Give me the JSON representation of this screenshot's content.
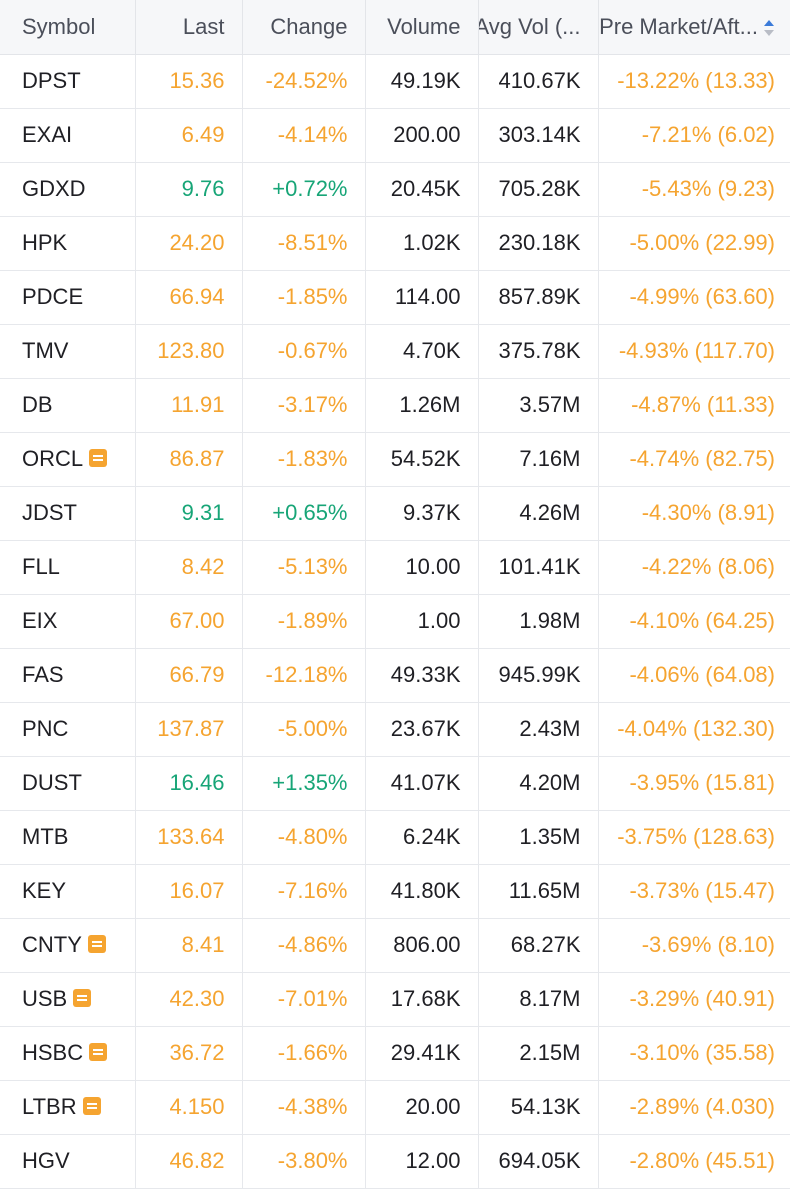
{
  "colors": {
    "negative": "#f5a430",
    "positive": "#17a577",
    "header_bg": "#f6f7f9",
    "sort_active": "#3b7bd9"
  },
  "headers": {
    "symbol": "Symbol",
    "last": "Last",
    "change": "Change",
    "volume": "Volume",
    "avg_volume": "Avg Vol (...",
    "pre_market": "Pre Market/Aft..."
  },
  "rows": [
    {
      "symbol": "DPST",
      "note": false,
      "last": "15.36",
      "change": "-24.52%",
      "volume": "49.19K",
      "avg_vol": "410.67K",
      "pre_market": "-13.22% (13.33)",
      "dir": "neg"
    },
    {
      "symbol": "EXAI",
      "note": false,
      "last": "6.49",
      "change": "-4.14%",
      "volume": "200.00",
      "avg_vol": "303.14K",
      "pre_market": "-7.21% (6.02)",
      "dir": "neg"
    },
    {
      "symbol": "GDXD",
      "note": false,
      "last": "9.76",
      "change": "+0.72%",
      "volume": "20.45K",
      "avg_vol": "705.28K",
      "pre_market": "-5.43% (9.23)",
      "dir": "pos"
    },
    {
      "symbol": "HPK",
      "note": false,
      "last": "24.20",
      "change": "-8.51%",
      "volume": "1.02K",
      "avg_vol": "230.18K",
      "pre_market": "-5.00% (22.99)",
      "dir": "neg"
    },
    {
      "symbol": "PDCE",
      "note": false,
      "last": "66.94",
      "change": "-1.85%",
      "volume": "114.00",
      "avg_vol": "857.89K",
      "pre_market": "-4.99% (63.60)",
      "dir": "neg"
    },
    {
      "symbol": "TMV",
      "note": false,
      "last": "123.80",
      "change": "-0.67%",
      "volume": "4.70K",
      "avg_vol": "375.78K",
      "pre_market": "-4.93% (117.70)",
      "dir": "neg"
    },
    {
      "symbol": "DB",
      "note": false,
      "last": "11.91",
      "change": "-3.17%",
      "volume": "1.26M",
      "avg_vol": "3.57M",
      "pre_market": "-4.87% (11.33)",
      "dir": "neg"
    },
    {
      "symbol": "ORCL",
      "note": true,
      "last": "86.87",
      "change": "-1.83%",
      "volume": "54.52K",
      "avg_vol": "7.16M",
      "pre_market": "-4.74% (82.75)",
      "dir": "neg"
    },
    {
      "symbol": "JDST",
      "note": false,
      "last": "9.31",
      "change": "+0.65%",
      "volume": "9.37K",
      "avg_vol": "4.26M",
      "pre_market": "-4.30% (8.91)",
      "dir": "pos"
    },
    {
      "symbol": "FLL",
      "note": false,
      "last": "8.42",
      "change": "-5.13%",
      "volume": "10.00",
      "avg_vol": "101.41K",
      "pre_market": "-4.22% (8.06)",
      "dir": "neg"
    },
    {
      "symbol": "EIX",
      "note": false,
      "last": "67.00",
      "change": "-1.89%",
      "volume": "1.00",
      "avg_vol": "1.98M",
      "pre_market": "-4.10% (64.25)",
      "dir": "neg"
    },
    {
      "symbol": "FAS",
      "note": false,
      "last": "66.79",
      "change": "-12.18%",
      "volume": "49.33K",
      "avg_vol": "945.99K",
      "pre_market": "-4.06% (64.08)",
      "dir": "neg"
    },
    {
      "symbol": "PNC",
      "note": false,
      "last": "137.87",
      "change": "-5.00%",
      "volume": "23.67K",
      "avg_vol": "2.43M",
      "pre_market": "-4.04% (132.30)",
      "dir": "neg"
    },
    {
      "symbol": "DUST",
      "note": false,
      "last": "16.46",
      "change": "+1.35%",
      "volume": "41.07K",
      "avg_vol": "4.20M",
      "pre_market": "-3.95% (15.81)",
      "dir": "pos"
    },
    {
      "symbol": "MTB",
      "note": false,
      "last": "133.64",
      "change": "-4.80%",
      "volume": "6.24K",
      "avg_vol": "1.35M",
      "pre_market": "-3.75% (128.63)",
      "dir": "neg"
    },
    {
      "symbol": "KEY",
      "note": false,
      "last": "16.07",
      "change": "-7.16%",
      "volume": "41.80K",
      "avg_vol": "11.65M",
      "pre_market": "-3.73% (15.47)",
      "dir": "neg"
    },
    {
      "symbol": "CNTY",
      "note": true,
      "last": "8.41",
      "change": "-4.86%",
      "volume": "806.00",
      "avg_vol": "68.27K",
      "pre_market": "-3.69% (8.10)",
      "dir": "neg"
    },
    {
      "symbol": "USB",
      "note": true,
      "last": "42.30",
      "change": "-7.01%",
      "volume": "17.68K",
      "avg_vol": "8.17M",
      "pre_market": "-3.29% (40.91)",
      "dir": "neg"
    },
    {
      "symbol": "HSBC",
      "note": true,
      "last": "36.72",
      "change": "-1.66%",
      "volume": "29.41K",
      "avg_vol": "2.15M",
      "pre_market": "-3.10% (35.58)",
      "dir": "neg"
    },
    {
      "symbol": "LTBR",
      "note": true,
      "last": "4.150",
      "change": "-4.38%",
      "volume": "20.00",
      "avg_vol": "54.13K",
      "pre_market": "-2.89% (4.030)",
      "dir": "neg"
    },
    {
      "symbol": "HGV",
      "note": false,
      "last": "46.82",
      "change": "-3.80%",
      "volume": "12.00",
      "avg_vol": "694.05K",
      "pre_market": "-2.80% (45.51)",
      "dir": "neg"
    }
  ]
}
